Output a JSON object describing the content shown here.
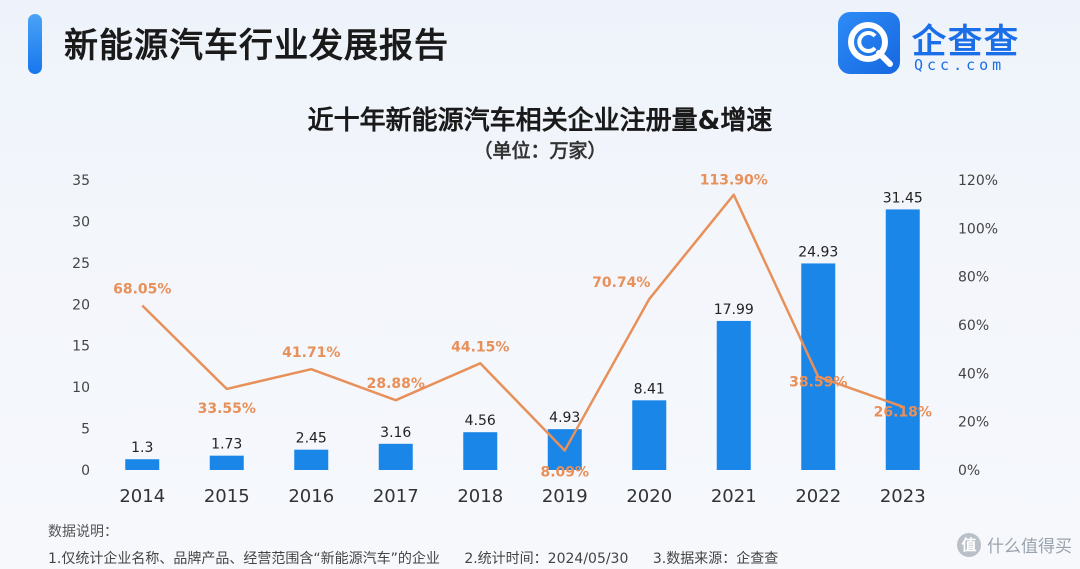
{
  "header": {
    "title": "新能源汽车行业发展报告",
    "logo_cn": "企查查",
    "logo_en": "Qcc.com",
    "logo_icon": "qcc-logo-icon"
  },
  "chart_data": {
    "type": "bar",
    "title": "近十年新能源汽车相关企业注册量&增速",
    "subtitle": "（单位：万家）",
    "categories": [
      "2014",
      "2015",
      "2016",
      "2017",
      "2018",
      "2019",
      "2020",
      "2021",
      "2022",
      "2023"
    ],
    "series": [
      {
        "type": "bar",
        "values": [
          1.3,
          1.73,
          2.45,
          3.16,
          4.56,
          4.93,
          8.41,
          17.99,
          24.93,
          31.45
        ],
        "labels": [
          "1.3",
          "1.73",
          "2.45",
          "3.16",
          "4.56",
          "4.93",
          "8.41",
          "17.99",
          "24.93",
          "31.45"
        ],
        "color": "#1a86e8"
      },
      {
        "type": "line",
        "axis": "right",
        "values": [
          68.05,
          33.55,
          41.71,
          28.88,
          44.15,
          8.09,
          70.74,
          113.9,
          38.59,
          26.18
        ],
        "labels": [
          "68.05%",
          "33.55%",
          "41.71%",
          "28.88%",
          "44.15%",
          "8.09%",
          "70.74%",
          "113.90%",
          "38.59%",
          "26.18%"
        ],
        "color": "#e8905a"
      }
    ],
    "left_axis": {
      "ylim": [
        0,
        35
      ],
      "ticks": [
        "0",
        "5",
        "10",
        "15",
        "20",
        "25",
        "30",
        "35"
      ],
      "values": [
        0,
        5,
        10,
        15,
        20,
        25,
        30,
        35
      ]
    },
    "right_axis": {
      "ylim": [
        0,
        120
      ],
      "ticks": [
        "0%",
        "20%",
        "40%",
        "60%",
        "80%",
        "100%",
        "120%"
      ],
      "values": [
        0,
        20,
        40,
        60,
        80,
        100,
        120
      ]
    },
    "grid": false,
    "legend": "none"
  },
  "notes": {
    "title": "数据说明：",
    "items": [
      "1.仅统计企业名称、品牌产品、经营范围含“新能源汽车”的企业",
      "2.统计时间：2024/05/30",
      "3.数据来源：企查查"
    ]
  },
  "watermark": {
    "text": "什么值得买",
    "badge": "值"
  },
  "colors": {
    "accent": "#1a86e8",
    "line": "#e8905a",
    "brand": "#1a6fe8"
  }
}
